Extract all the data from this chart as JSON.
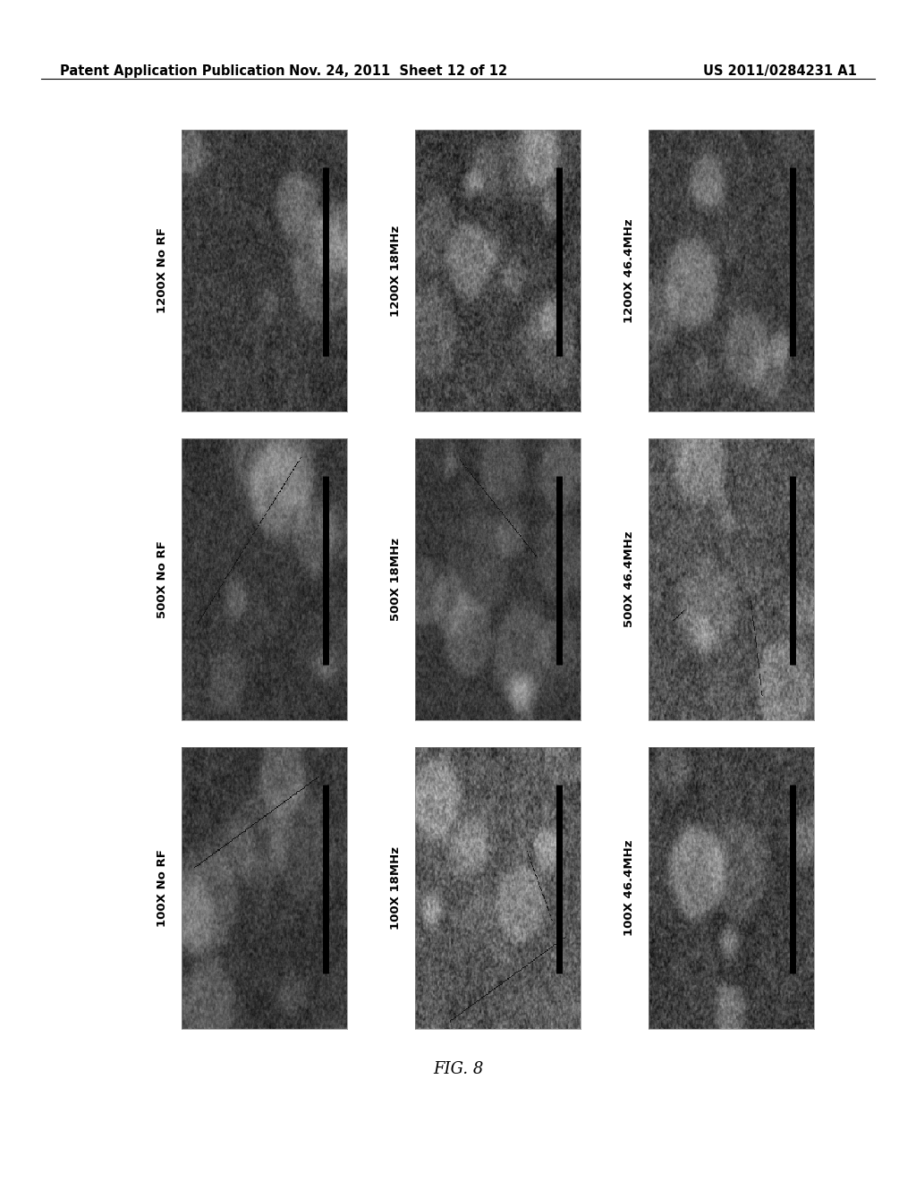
{
  "title_left": "Patent Application Publication",
  "title_center": "Nov. 24, 2011  Sheet 12 of 12",
  "title_right": "US 2011/0284231 A1",
  "fig_label": "FIG. 8",
  "background_color": "#ffffff",
  "header_fontsize": 10.5,
  "fig_label_fontsize": 13,
  "rows": [
    {
      "cols": [
        {
          "label": "1200X No RF",
          "noise_seed": 101,
          "brightness": 0.62
        },
        {
          "label": "1200X 18MHz",
          "noise_seed": 202,
          "brightness": 0.68
        },
        {
          "label": "1200X 46.4MHz",
          "noise_seed": 303,
          "brightness": 0.58
        }
      ]
    },
    {
      "cols": [
        {
          "label": "500X No RF",
          "noise_seed": 404,
          "brightness": 0.6
        },
        {
          "label": "500X 18MHz",
          "noise_seed": 505,
          "brightness": 0.65
        },
        {
          "label": "500X 46.4MHz",
          "noise_seed": 606,
          "brightness": 0.7
        }
      ]
    },
    {
      "cols": [
        {
          "label": "100X No RF",
          "noise_seed": 707,
          "brightness": 0.55
        },
        {
          "label": "100X 18MHz",
          "noise_seed": 808,
          "brightness": 0.72
        },
        {
          "label": "100X 46.4MHz",
          "noise_seed": 909,
          "brightness": 0.65
        }
      ]
    }
  ],
  "label_fontsize": 9.5,
  "label_fontweight": "bold"
}
